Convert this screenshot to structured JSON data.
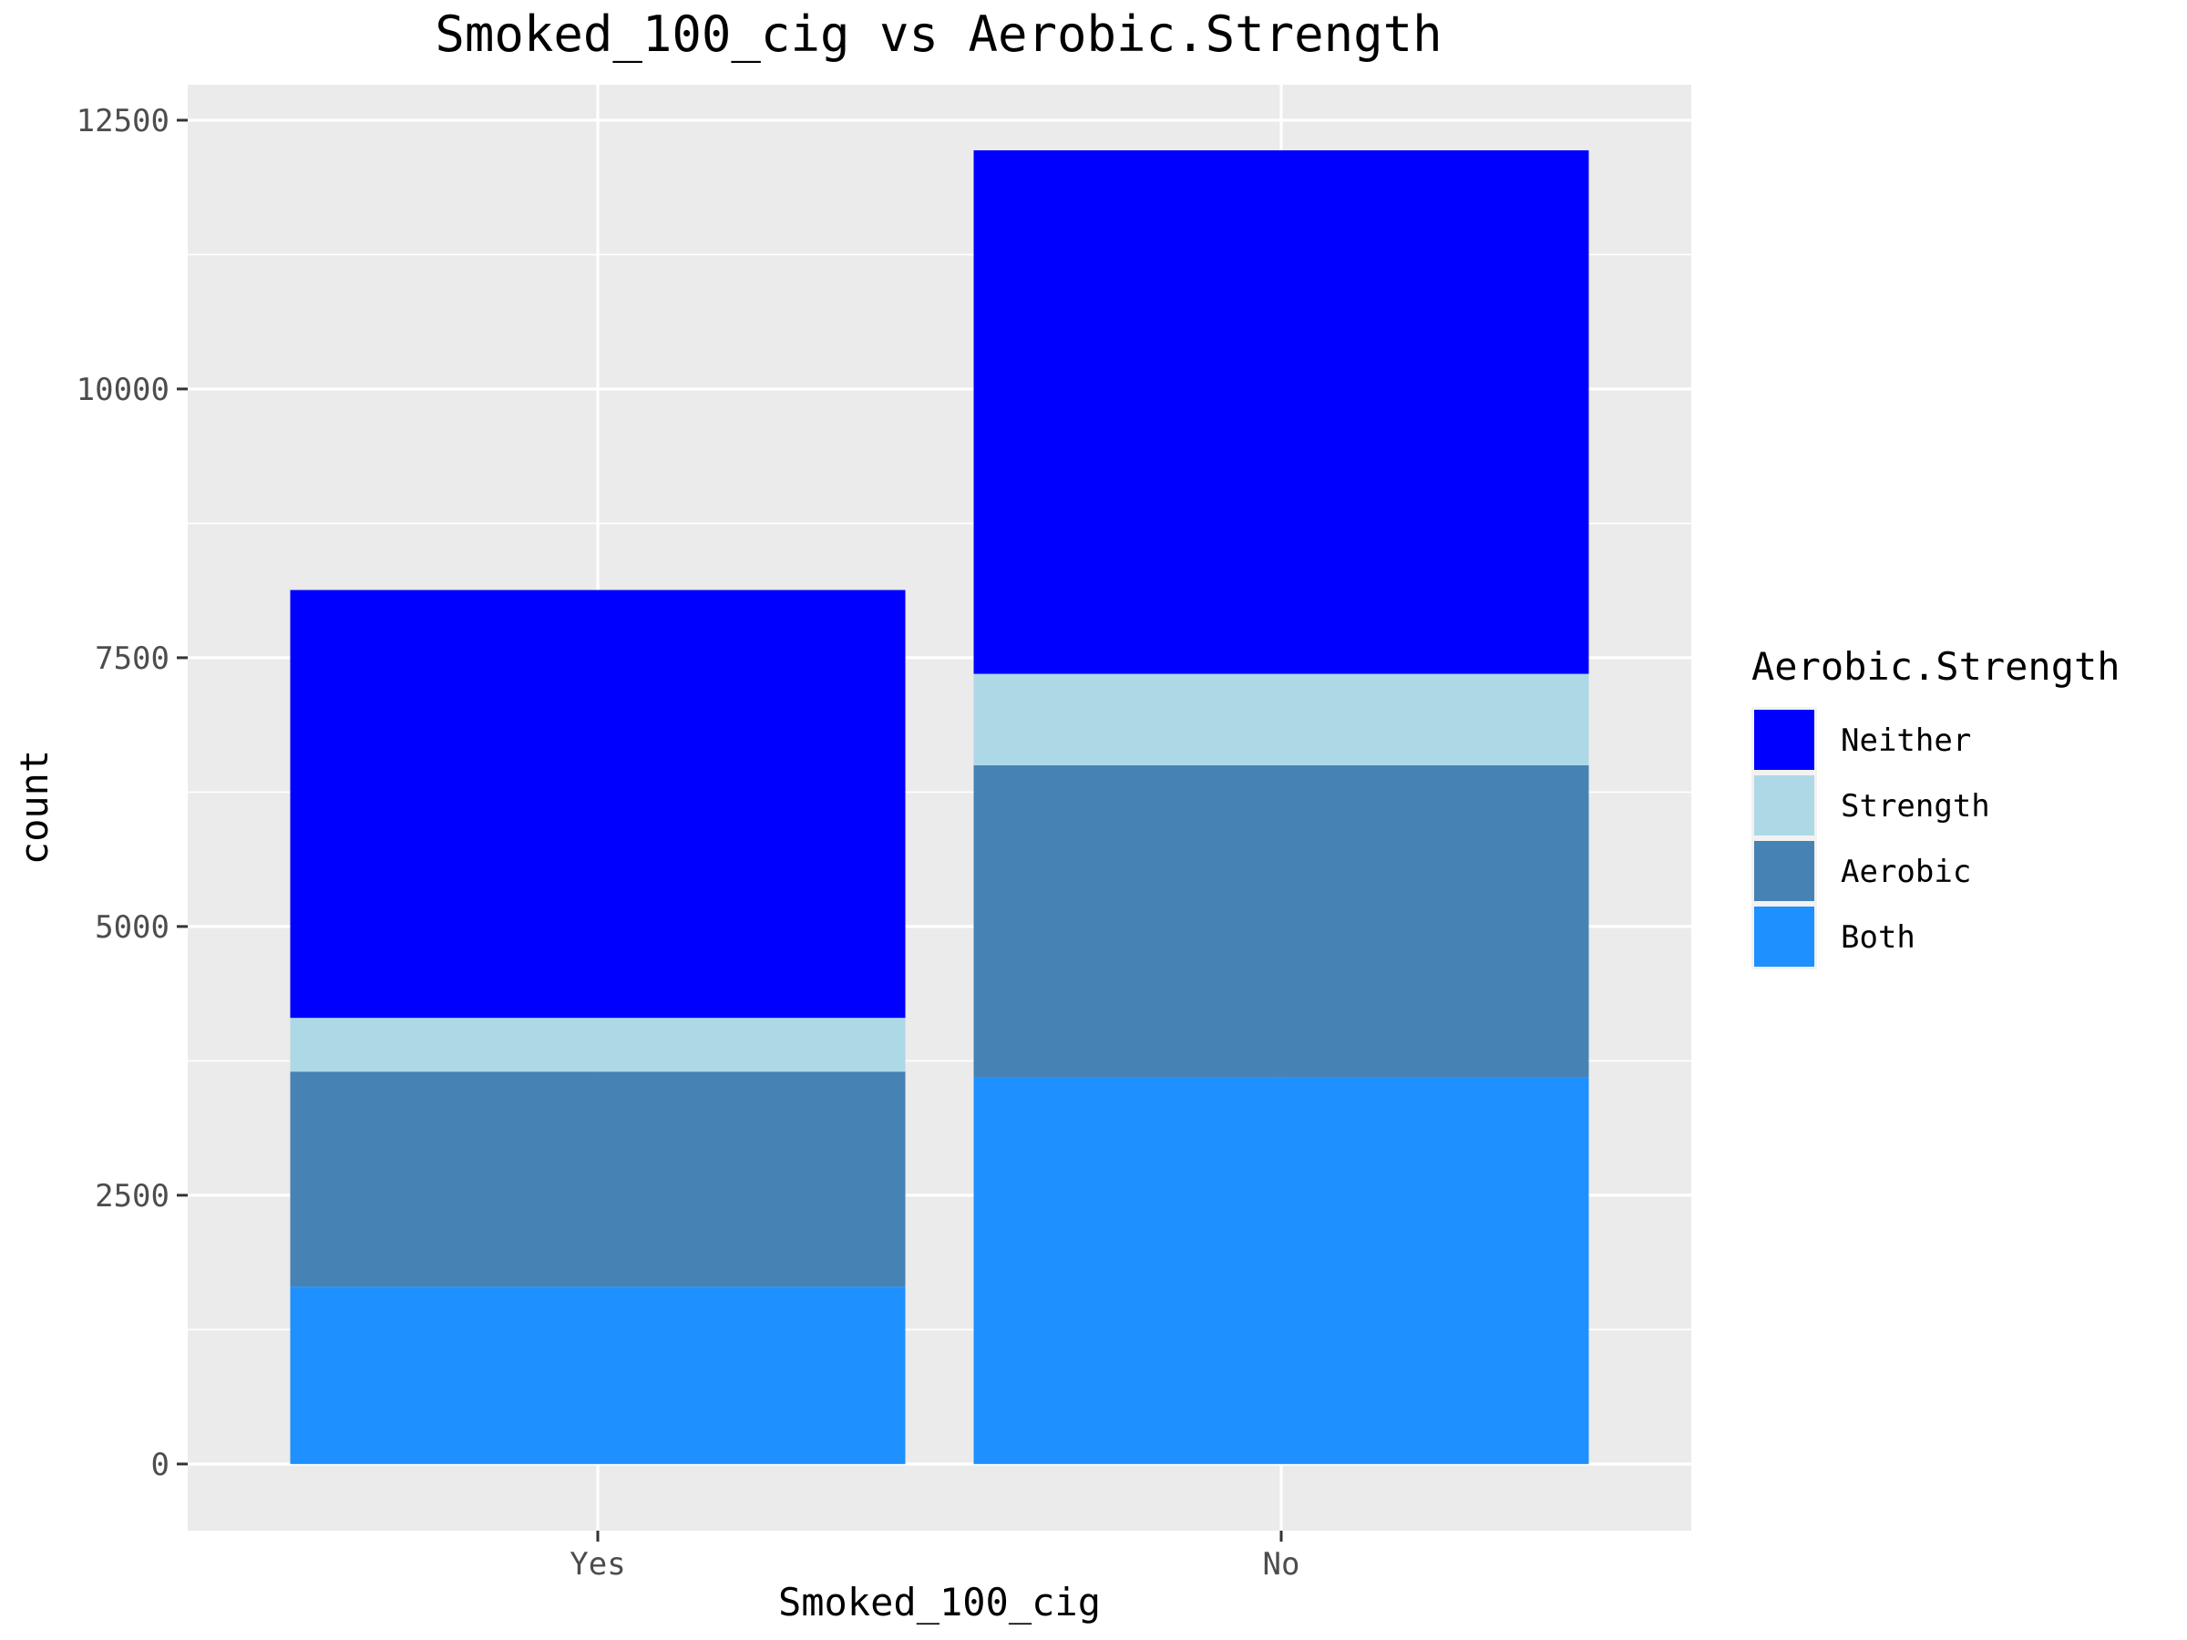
{
  "chart_data": {
    "type": "bar",
    "stacked": true,
    "title": "Smoked_100_cig vs Aerobic.Strength",
    "xlabel": "Smoked_100_cig",
    "ylabel": "count",
    "categories": [
      "Yes",
      "No"
    ],
    "ylim": [
      -620,
      12830
    ],
    "yticks": [
      0,
      2500,
      5000,
      7500,
      10000,
      12500
    ],
    "ytick_labels": [
      "0",
      "2500",
      "5000",
      "7500",
      "10000",
      "12500"
    ],
    "grid": true,
    "legend": {
      "title": "Aerobic.Strength",
      "position": "right"
    },
    "series": [
      {
        "name": "Both",
        "color": "#1E90FF",
        "values": [
          1650,
          3600
        ]
      },
      {
        "name": "Aerobic",
        "color": "#4682B4",
        "values": [
          2000,
          2900
        ]
      },
      {
        "name": "Strength",
        "color": "#ADD8E6",
        "values": [
          500,
          850
        ]
      },
      {
        "name": "Neither",
        "color": "#0000FF",
        "values": [
          3980,
          4870
        ]
      }
    ],
    "legend_order": [
      "Neither",
      "Strength",
      "Aerobic",
      "Both"
    ]
  }
}
